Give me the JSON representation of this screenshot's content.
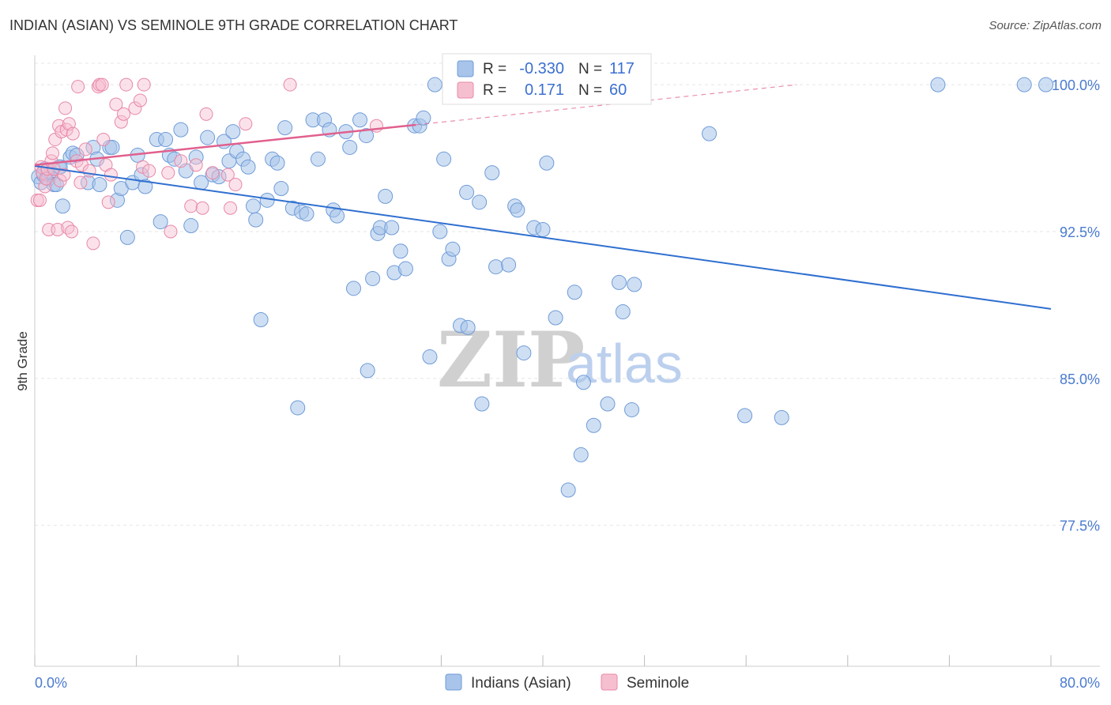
{
  "header": {
    "title": "INDIAN (ASIAN) VS SEMINOLE 9TH GRADE CORRELATION CHART",
    "source": "Source: ZipAtlas.com"
  },
  "watermark": {
    "zip": "ZIP",
    "atlas": "atlas"
  },
  "legend": {
    "rows": [
      {
        "r_label": "R =",
        "r_value": "-0.330",
        "n_label": "N =",
        "n_value": "117"
      },
      {
        "r_label": "R =",
        "r_value": "0.171",
        "n_label": "N =",
        "n_value": "60"
      }
    ]
  },
  "bottom_legend": [
    "Indians (Asian)",
    "Seminole"
  ],
  "colors": {
    "blue_fill": "#a8c4ea",
    "blue_stroke": "#6f9bd8",
    "blue_line": "#2f6fd0",
    "pink_fill": "#f6bfd0",
    "pink_stroke": "#e888a8",
    "pink_line": "#e0608e",
    "grid": "#e6e6e6",
    "tick_text": "#4a7bd0"
  },
  "chart_data": {
    "type": "scatter",
    "title": "INDIAN (ASIAN) VS SEMINOLE 9TH GRADE CORRELATION CHART",
    "xlabel": "",
    "ylabel": "9th Grade",
    "xlim": [
      0,
      80
    ],
    "ylim": [
      70.3,
      101.5
    ],
    "x_tick_labels": [
      "0.0%",
      "80.0%"
    ],
    "y_ticks": [
      77.5,
      85.0,
      92.5,
      100.0
    ],
    "y_tick_labels": [
      "77.5%",
      "85.0%",
      "92.5%",
      "100.0%"
    ],
    "series": [
      {
        "name": "Indians (Asian)",
        "r": -0.33,
        "n": 117,
        "trend": {
          "x": [
            0,
            80
          ],
          "y": [
            95.85,
            88.55
          ]
        },
        "points": [
          [
            0.3,
            95.3
          ],
          [
            0.5,
            95.0
          ],
          [
            0.7,
            95.4
          ],
          [
            0.8,
            95.7
          ],
          [
            1.0,
            95.6
          ],
          [
            1.1,
            95.2
          ],
          [
            1.3,
            95.5
          ],
          [
            1.5,
            94.9
          ],
          [
            1.7,
            94.9
          ],
          [
            1.9,
            95.8
          ],
          [
            2.0,
            95.8
          ],
          [
            2.2,
            93.8
          ],
          [
            2.8,
            96.3
          ],
          [
            3.0,
            96.5
          ],
          [
            3.3,
            96.4
          ],
          [
            4.2,
            95.0
          ],
          [
            4.6,
            96.8
          ],
          [
            4.9,
            96.2
          ],
          [
            5.1,
            94.9
          ],
          [
            5.9,
            96.8
          ],
          [
            6.1,
            96.8
          ],
          [
            6.5,
            94.1
          ],
          [
            6.8,
            94.7
          ],
          [
            7.3,
            92.2
          ],
          [
            7.7,
            95.0
          ],
          [
            8.1,
            96.4
          ],
          [
            8.4,
            95.4
          ],
          [
            8.7,
            94.8
          ],
          [
            9.6,
            97.2
          ],
          [
            9.9,
            93.0
          ],
          [
            10.3,
            97.2
          ],
          [
            10.6,
            96.4
          ],
          [
            11.0,
            96.2
          ],
          [
            11.5,
            97.7
          ],
          [
            11.9,
            95.6
          ],
          [
            12.3,
            92.8
          ],
          [
            12.7,
            96.3
          ],
          [
            13.1,
            95.0
          ],
          [
            13.6,
            97.3
          ],
          [
            14.0,
            95.4
          ],
          [
            14.5,
            95.3
          ],
          [
            14.9,
            97.1
          ],
          [
            15.3,
            96.1
          ],
          [
            15.6,
            97.6
          ],
          [
            15.9,
            96.6
          ],
          [
            16.4,
            96.2
          ],
          [
            16.8,
            95.8
          ],
          [
            17.2,
            93.8
          ],
          [
            17.4,
            93.1
          ],
          [
            17.8,
            88.0
          ],
          [
            18.3,
            94.1
          ],
          [
            18.7,
            96.2
          ],
          [
            19.1,
            96.0
          ],
          [
            19.4,
            94.7
          ],
          [
            19.7,
            97.8
          ],
          [
            20.3,
            93.7
          ],
          [
            20.7,
            83.5
          ],
          [
            21.0,
            93.5
          ],
          [
            21.4,
            93.4
          ],
          [
            21.9,
            98.2
          ],
          [
            22.3,
            96.2
          ],
          [
            22.8,
            98.2
          ],
          [
            23.2,
            97.7
          ],
          [
            23.5,
            93.6
          ],
          [
            23.8,
            93.3
          ],
          [
            24.5,
            97.6
          ],
          [
            24.8,
            96.8
          ],
          [
            25.1,
            89.6
          ],
          [
            25.6,
            98.2
          ],
          [
            26.1,
            97.4
          ],
          [
            26.2,
            85.4
          ],
          [
            26.6,
            90.1
          ],
          [
            27.0,
            92.4
          ],
          [
            27.2,
            92.7
          ],
          [
            27.6,
            94.3
          ],
          [
            28.1,
            92.7
          ],
          [
            28.3,
            90.4
          ],
          [
            28.8,
            91.5
          ],
          [
            29.2,
            90.6
          ],
          [
            29.9,
            97.9
          ],
          [
            30.3,
            97.9
          ],
          [
            30.6,
            98.3
          ],
          [
            31.1,
            86.1
          ],
          [
            31.5,
            100.0
          ],
          [
            31.9,
            92.5
          ],
          [
            32.2,
            96.2
          ],
          [
            32.6,
            91.1
          ],
          [
            32.9,
            91.6
          ],
          [
            33.5,
            87.7
          ],
          [
            34.0,
            94.5
          ],
          [
            34.1,
            87.6
          ],
          [
            35.0,
            94.0
          ],
          [
            35.2,
            83.7
          ],
          [
            36.0,
            95.5
          ],
          [
            36.3,
            90.7
          ],
          [
            37.3,
            90.8
          ],
          [
            37.8,
            93.8
          ],
          [
            38.0,
            93.6
          ],
          [
            38.5,
            86.3
          ],
          [
            39.3,
            92.7
          ],
          [
            40.0,
            92.6
          ],
          [
            40.3,
            96.0
          ],
          [
            41.0,
            88.1
          ],
          [
            42.0,
            79.3
          ],
          [
            42.5,
            89.4
          ],
          [
            43.0,
            81.1
          ],
          [
            43.2,
            84.8
          ],
          [
            44.0,
            82.6
          ],
          [
            45.1,
            83.7
          ],
          [
            46.0,
            89.9
          ],
          [
            46.3,
            88.4
          ],
          [
            47.0,
            83.4
          ],
          [
            47.2,
            89.8
          ],
          [
            53.1,
            97.5
          ],
          [
            55.9,
            83.1
          ],
          [
            58.8,
            83.0
          ],
          [
            71.1,
            100.0
          ],
          [
            77.9,
            100.0
          ],
          [
            79.6,
            100.0
          ]
        ]
      },
      {
        "name": "Seminole",
        "r": 0.171,
        "n": 60,
        "trend": {
          "x": [
            0,
            30
          ],
          "y": [
            95.9,
            97.95
          ]
        },
        "trend_extension": {
          "x": [
            30,
            60
          ],
          "y": [
            97.95,
            100.0
          ]
        },
        "points": [
          [
            0.2,
            94.1
          ],
          [
            0.4,
            94.1
          ],
          [
            0.5,
            95.8
          ],
          [
            0.6,
            95.5
          ],
          [
            0.8,
            94.8
          ],
          [
            0.9,
            95.2
          ],
          [
            1.0,
            95.7
          ],
          [
            1.1,
            92.6
          ],
          [
            1.3,
            96.1
          ],
          [
            1.4,
            96.5
          ],
          [
            1.5,
            95.7
          ],
          [
            1.6,
            97.2
          ],
          [
            1.8,
            92.6
          ],
          [
            1.9,
            97.9
          ],
          [
            2.0,
            95.1
          ],
          [
            2.1,
            97.6
          ],
          [
            2.3,
            95.4
          ],
          [
            2.4,
            98.8
          ],
          [
            2.5,
            97.7
          ],
          [
            2.6,
            92.7
          ],
          [
            2.7,
            98.0
          ],
          [
            2.9,
            92.5
          ],
          [
            3.0,
            97.5
          ],
          [
            3.3,
            96.1
          ],
          [
            3.4,
            99.9
          ],
          [
            3.6,
            95.0
          ],
          [
            3.7,
            95.9
          ],
          [
            4.0,
            96.7
          ],
          [
            4.3,
            95.6
          ],
          [
            4.6,
            91.9
          ],
          [
            5.0,
            99.9
          ],
          [
            5.1,
            100.0
          ],
          [
            5.3,
            100.0
          ],
          [
            5.4,
            97.2
          ],
          [
            5.6,
            95.9
          ],
          [
            5.8,
            94.0
          ],
          [
            6.0,
            95.4
          ],
          [
            6.4,
            99.0
          ],
          [
            6.8,
            98.1
          ],
          [
            7.0,
            98.5
          ],
          [
            7.2,
            100.0
          ],
          [
            7.9,
            98.8
          ],
          [
            8.3,
            99.2
          ],
          [
            8.5,
            95.8
          ],
          [
            8.6,
            100.0
          ],
          [
            9.0,
            95.6
          ],
          [
            10.5,
            95.5
          ],
          [
            10.7,
            92.5
          ],
          [
            11.5,
            96.1
          ],
          [
            12.3,
            93.8
          ],
          [
            12.7,
            95.9
          ],
          [
            13.2,
            93.7
          ],
          [
            13.5,
            98.5
          ],
          [
            14.0,
            95.5
          ],
          [
            15.2,
            95.4
          ],
          [
            15.4,
            93.7
          ],
          [
            15.8,
            94.9
          ],
          [
            16.6,
            98.0
          ],
          [
            20.1,
            100.0
          ],
          [
            26.9,
            97.9
          ]
        ]
      }
    ]
  }
}
